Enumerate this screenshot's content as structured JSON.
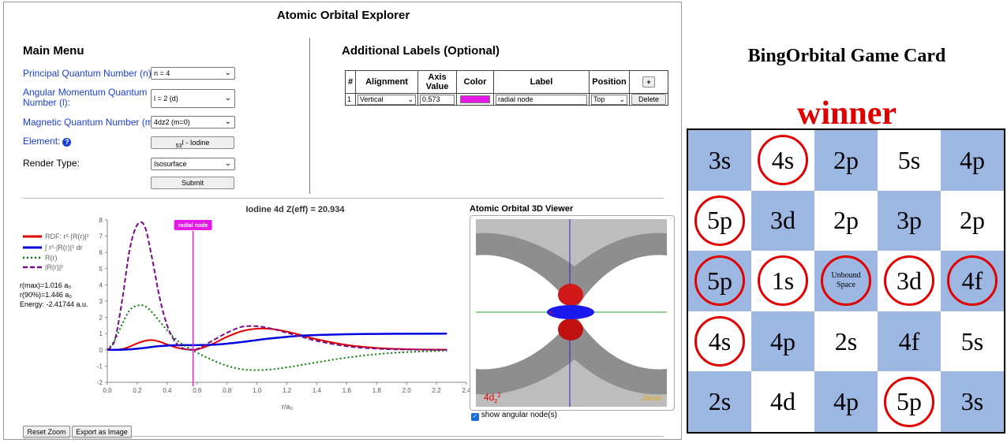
{
  "app": {
    "title": "Atomic Orbital Explorer",
    "main_menu_title": "Main Menu",
    "labels_title": "Additional Labels (Optional)"
  },
  "menu": {
    "n_label": "Principal Quantum Number (n):",
    "n_value": "n = 4",
    "l_label": "Angular Momentum Quantum Number (l):",
    "l_value": "l = 2 (d)",
    "m_label": "Magnetic Quantum Number (m",
    "m_sub": "l",
    "m_label_end": "):",
    "m_value": "4dz2 (m=0)",
    "element_label": "Element:",
    "element_sub": "53",
    "element_value": "I - Iodine",
    "render_label": "Render Type:",
    "render_value": "Isosurface",
    "submit": "Submit"
  },
  "labels_table": {
    "headers": [
      "#",
      "Alignment",
      "Axis Value",
      "Color",
      "Label",
      "Position",
      "+"
    ],
    "row": {
      "index": "1",
      "alignment": "Vertical",
      "axis_value": "0.573",
      "color": "#e619e6",
      "label": "radial node",
      "position": "Top",
      "delete": "Delete"
    }
  },
  "chart_title": "Iodine 4d Z(eff) = 20.934",
  "legend": {
    "rdf": "RDF: r²·|R(r)|²",
    "integral": "∫ r²·|R(r)|² dr",
    "rr": "R(r)",
    "rr2": "|R(r)|²"
  },
  "stats": {
    "rmax": "r(max)=1.016 a₀",
    "r90": "r(90%)=1.446 a₀",
    "energy": "Energy: -2.41744 a.u."
  },
  "annotation": {
    "label": "radial node",
    "x": 0.573
  },
  "chart_data": {
    "type": "line",
    "title": "Iodine 4d Z(eff) = 20.934",
    "xlabel": "r/a₀",
    "ylabel": "",
    "xlim": [
      0,
      2.4
    ],
    "ylim": [
      -2,
      8
    ],
    "x_ticks": [
      "0.0",
      "0.2",
      "0.4",
      "0.6",
      "0.8",
      "1.0",
      "1.2",
      "1.4",
      "1.6",
      "1.8",
      "2.0",
      "2.2",
      "2.4"
    ],
    "y_ticks": [
      "-2",
      "-1",
      "0",
      "1",
      "2",
      "3",
      "4",
      "5",
      "6",
      "7",
      "8"
    ],
    "x": [
      0,
      0.05,
      0.1,
      0.15,
      0.2,
      0.25,
      0.3,
      0.35,
      0.4,
      0.45,
      0.5,
      0.55,
      0.6,
      0.7,
      0.8,
      0.9,
      1.0,
      1.1,
      1.2,
      1.3,
      1.4,
      1.6,
      1.8,
      2.0,
      2.27
    ],
    "series": [
      {
        "name": "RDF: r²·|R(r)|²",
        "color": "#e00000",
        "values": [
          0,
          0.0,
          0.05,
          0.2,
          0.4,
          0.55,
          0.6,
          0.5,
          0.33,
          0.17,
          0.06,
          0.01,
          0.02,
          0.35,
          0.8,
          1.15,
          1.3,
          1.28,
          1.12,
          0.9,
          0.65,
          0.3,
          0.12,
          0.04,
          0.01
        ]
      },
      {
        "name": "∫ r²·|R(r)|² dr",
        "color": "#0000e0",
        "values": [
          0,
          0,
          0.01,
          0.03,
          0.07,
          0.12,
          0.18,
          0.23,
          0.26,
          0.28,
          0.29,
          0.29,
          0.29,
          0.31,
          0.38,
          0.48,
          0.6,
          0.71,
          0.8,
          0.87,
          0.91,
          0.96,
          0.98,
          0.99,
          1.0
        ]
      },
      {
        "name": "R(r)",
        "color": "#007a00",
        "values": [
          0,
          0.6,
          1.6,
          2.45,
          2.72,
          2.7,
          2.3,
          1.75,
          1.2,
          0.72,
          0.35,
          0.08,
          -0.18,
          -0.62,
          -0.98,
          -1.2,
          -1.25,
          -1.2,
          -1.08,
          -0.93,
          -0.77,
          -0.48,
          -0.27,
          -0.14,
          -0.05
        ]
      },
      {
        "name": "|R(r)|²",
        "color": "#7a0a8a",
        "values": [
          0,
          0.6,
          3.1,
          6.2,
          7.7,
          7.6,
          5.6,
          3.2,
          1.5,
          0.55,
          0.12,
          0.01,
          0.05,
          0.55,
          1.05,
          1.42,
          1.45,
          1.3,
          1.05,
          0.8,
          0.55,
          0.22,
          0.07,
          0.02,
          0.0
        ]
      }
    ],
    "grid": false,
    "legend_position": "left"
  },
  "viewer": {
    "title": "Atomic Orbital 3D Viewer",
    "orbital_label": "4d",
    "orbital_sub": "z",
    "orbital_sup": "2",
    "brand": "JSmol",
    "checkbox_label": "show angular node(s)"
  },
  "buttons": {
    "reset_zoom": "Reset Zoom",
    "export": "Export as Image"
  },
  "game_card": {
    "title": "BingOrbital Game Card",
    "status": "winner",
    "cells": [
      {
        "text": "3s",
        "blue": true,
        "marked": false
      },
      {
        "text": "4s",
        "blue": false,
        "marked": true
      },
      {
        "text": "2p",
        "blue": true,
        "marked": false
      },
      {
        "text": "5s",
        "blue": false,
        "marked": false
      },
      {
        "text": "4p",
        "blue": true,
        "marked": false
      },
      {
        "text": "5p",
        "blue": false,
        "marked": true
      },
      {
        "text": "3d",
        "blue": true,
        "marked": false
      },
      {
        "text": "2p",
        "blue": false,
        "marked": false
      },
      {
        "text": "3p",
        "blue": true,
        "marked": false
      },
      {
        "text": "2p",
        "blue": false,
        "marked": false
      },
      {
        "text": "5p",
        "blue": true,
        "marked": true
      },
      {
        "text": "1s",
        "blue": false,
        "marked": true
      },
      {
        "text": "Unbound Space",
        "blue": true,
        "marked": true,
        "free": true
      },
      {
        "text": "3d",
        "blue": false,
        "marked": true
      },
      {
        "text": "4f",
        "blue": true,
        "marked": true
      },
      {
        "text": "4s",
        "blue": false,
        "marked": true
      },
      {
        "text": "4p",
        "blue": true,
        "marked": false
      },
      {
        "text": "2s",
        "blue": false,
        "marked": false
      },
      {
        "text": "4f",
        "blue": true,
        "marked": false
      },
      {
        "text": "5s",
        "blue": false,
        "marked": false
      },
      {
        "text": "2s",
        "blue": true,
        "marked": false
      },
      {
        "text": "4d",
        "blue": false,
        "marked": false
      },
      {
        "text": "4p",
        "blue": true,
        "marked": false
      },
      {
        "text": "5p",
        "blue": false,
        "marked": true
      },
      {
        "text": "3s",
        "blue": true,
        "marked": false
      }
    ]
  }
}
